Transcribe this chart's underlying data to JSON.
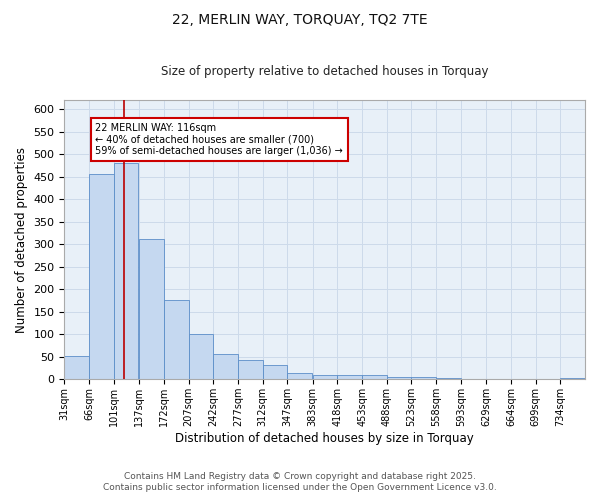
{
  "title1": "22, MERLIN WAY, TORQUAY, TQ2 7TE",
  "title2": "Size of property relative to detached houses in Torquay",
  "xlabel": "Distribution of detached houses by size in Torquay",
  "ylabel": "Number of detached properties",
  "bin_labels": [
    "31sqm",
    "66sqm",
    "101sqm",
    "137sqm",
    "172sqm",
    "207sqm",
    "242sqm",
    "277sqm",
    "312sqm",
    "347sqm",
    "383sqm",
    "418sqm",
    "453sqm",
    "488sqm",
    "523sqm",
    "558sqm",
    "593sqm",
    "629sqm",
    "664sqm",
    "699sqm",
    "734sqm"
  ],
  "bin_edges": [
    31,
    66,
    101,
    137,
    172,
    207,
    242,
    277,
    312,
    347,
    383,
    418,
    453,
    488,
    523,
    558,
    593,
    629,
    664,
    699,
    734,
    769
  ],
  "heights": [
    52,
    455,
    480,
    312,
    175,
    100,
    57,
    42,
    32,
    15,
    9,
    9,
    9,
    6,
    6,
    3,
    1,
    1,
    1,
    1,
    4
  ],
  "bar_color": "#c5d8f0",
  "bar_edge_color": "#5b8dc8",
  "grid_color": "#cddaea",
  "bg_color": "#e8f0f8",
  "fig_bg_color": "#ffffff",
  "red_line_x": 116,
  "red_line_color": "#bb0000",
  "annotation_text": "22 MERLIN WAY: 116sqm\n← 40% of detached houses are smaller (700)\n59% of semi-detached houses are larger (1,036) →",
  "annotation_box_color": "#ffffff",
  "annotation_box_edge": "#cc0000",
  "ylim": [
    0,
    620
  ],
  "yticks": [
    0,
    50,
    100,
    150,
    200,
    250,
    300,
    350,
    400,
    450,
    500,
    550,
    600
  ],
  "footnote1": "Contains HM Land Registry data © Crown copyright and database right 2025.",
  "footnote2": "Contains public sector information licensed under the Open Government Licence v3.0."
}
